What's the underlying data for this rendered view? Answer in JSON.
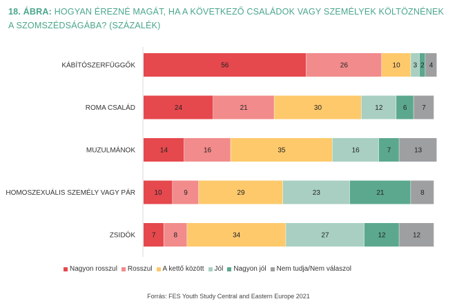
{
  "title": {
    "prefix": "18. ÁBRA:",
    "text": "HOGYAN ÉREZNÉ MAGÁT, HA A KÖVETKEZŐ CSALÁDOK VAGY SZEMÉLYEK KÖLTÖZNÉNEK A SZOMSZÉDSÁGÁBA? (SZÁZALÉK)"
  },
  "source": "Forrás: FES Youth Study Central and Eastern Europe 2021",
  "chart_data": {
    "type": "bar",
    "orientation": "horizontal",
    "stacked": true,
    "categories": [
      "KÁBÍTÓSZERFÜGGŐK",
      "ROMA CSALÁD",
      "MUZULMÁNOK",
      "HOMOSZEXUÁLIS SZEMÉLY VAGY PÁR",
      "ZSIDÓK"
    ],
    "series": [
      {
        "name": "Nagyon rosszul",
        "color": "#e5484d",
        "values": [
          56,
          24,
          14,
          10,
          7
        ]
      },
      {
        "name": "Rosszul",
        "color": "#f28b8b",
        "values": [
          26,
          21,
          16,
          9,
          8
        ]
      },
      {
        "name": "A kettő között",
        "color": "#fdc96b",
        "values": [
          10,
          30,
          35,
          29,
          34
        ]
      },
      {
        "name": "Jól",
        "color": "#a8cfc1",
        "values": [
          3,
          12,
          16,
          23,
          27
        ]
      },
      {
        "name": "Nagyon jól",
        "color": "#5ba88e",
        "values": [
          2,
          6,
          7,
          21,
          12
        ]
      },
      {
        "name": "Nem tudja/Nem válaszol",
        "color": "#9e9fa1",
        "values": [
          4,
          7,
          13,
          8,
          12
        ]
      }
    ],
    "xlim": [
      0,
      101
    ],
    "grid": false,
    "legend_position": "bottom"
  }
}
